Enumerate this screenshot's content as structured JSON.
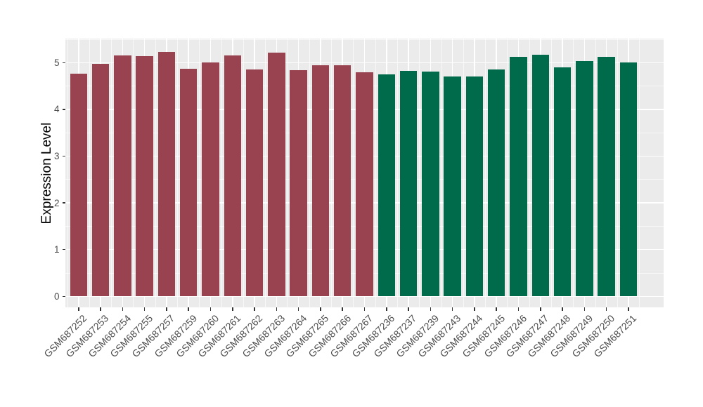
{
  "figure": {
    "background": "#FFFFFF",
    "panel_background": "#EBEBEB",
    "gridline_color": "#FFFFFF",
    "axis_text_color": "#4d4d4d"
  },
  "chart_data": {
    "type": "bar",
    "title": "",
    "xlabel": "",
    "ylabel": "Expression Level",
    "legend": "none",
    "grid": "major and minor, white on grey panel (ggplot style)",
    "ylim": [
      -0.24,
      5.54
    ],
    "yticks": [
      0,
      1,
      2,
      3,
      4,
      5
    ],
    "categories": [
      "GSM687252",
      "GSM687253",
      "GSM687254",
      "GSM687255",
      "GSM687257",
      "GSM687259",
      "GSM687260",
      "GSM687261",
      "GSM687262",
      "GSM687263",
      "GSM687264",
      "GSM687265",
      "GSM687266",
      "GSM687267",
      "GSM687236",
      "GSM687237",
      "GSM687239",
      "GSM687243",
      "GSM687244",
      "GSM687245",
      "GSM687246",
      "GSM687247",
      "GSM687248",
      "GSM687249",
      "GSM687250",
      "GSM687251"
    ],
    "values": [
      4.77,
      4.97,
      5.16,
      5.14,
      5.23,
      4.87,
      5.0,
      5.15,
      4.86,
      5.22,
      4.84,
      4.94,
      4.95,
      4.8,
      4.75,
      4.83,
      4.81,
      4.7,
      4.7,
      4.86,
      5.12,
      5.17,
      4.9,
      5.04,
      5.13,
      5.01
    ],
    "groups": [
      "group1",
      "group1",
      "group1",
      "group1",
      "group1",
      "group1",
      "group1",
      "group1",
      "group1",
      "group1",
      "group1",
      "group1",
      "group1",
      "group1",
      "group2",
      "group2",
      "group2",
      "group2",
      "group2",
      "group2",
      "group2",
      "group2",
      "group2",
      "group2",
      "group2",
      "group2"
    ],
    "group_colors": {
      "group1": "#9A4350",
      "group2": "#006B4B"
    }
  }
}
